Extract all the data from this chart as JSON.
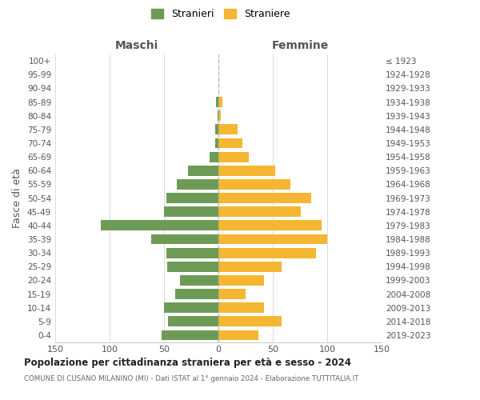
{
  "age_groups": [
    "0-4",
    "5-9",
    "10-14",
    "15-19",
    "20-24",
    "25-29",
    "30-34",
    "35-39",
    "40-44",
    "45-49",
    "50-54",
    "55-59",
    "60-64",
    "65-69",
    "70-74",
    "75-79",
    "80-84",
    "85-89",
    "90-94",
    "95-99",
    "100+"
  ],
  "birth_years": [
    "2019-2023",
    "2014-2018",
    "2009-2013",
    "2004-2008",
    "1999-2003",
    "1994-1998",
    "1989-1993",
    "1984-1988",
    "1979-1983",
    "1974-1978",
    "1969-1973",
    "1964-1968",
    "1959-1963",
    "1954-1958",
    "1949-1953",
    "1944-1948",
    "1939-1943",
    "1934-1938",
    "1929-1933",
    "1924-1928",
    "≤ 1923"
  ],
  "maschi": [
    52,
    46,
    50,
    40,
    35,
    47,
    48,
    62,
    108,
    50,
    48,
    38,
    28,
    8,
    3,
    3,
    1,
    2,
    0,
    0,
    0
  ],
  "femmine": [
    37,
    58,
    42,
    25,
    42,
    58,
    90,
    100,
    95,
    76,
    85,
    66,
    52,
    28,
    22,
    18,
    2,
    4,
    0,
    0,
    0
  ],
  "maschi_color": "#6d9b56",
  "femmine_color": "#f5b731",
  "center_line_color": "#888888",
  "grid_color": "#cccccc",
  "background_color": "#ffffff",
  "title": "Popolazione per cittadinanza straniera per età e sesso - 2024",
  "subtitle": "COMUNE DI CUSANO MILANINO (MI) - Dati ISTAT al 1° gennaio 2024 - Elaborazione TUTTITALIA.IT",
  "ylabel_left": "Fasce di età",
  "xlabel_left": "Maschi",
  "xlabel_right": "Femmine",
  "legend_stranieri": "Stranieri",
  "legend_straniere": "Straniere",
  "xlim": 150,
  "figsize": [
    6.0,
    5.0
  ],
  "dpi": 100
}
